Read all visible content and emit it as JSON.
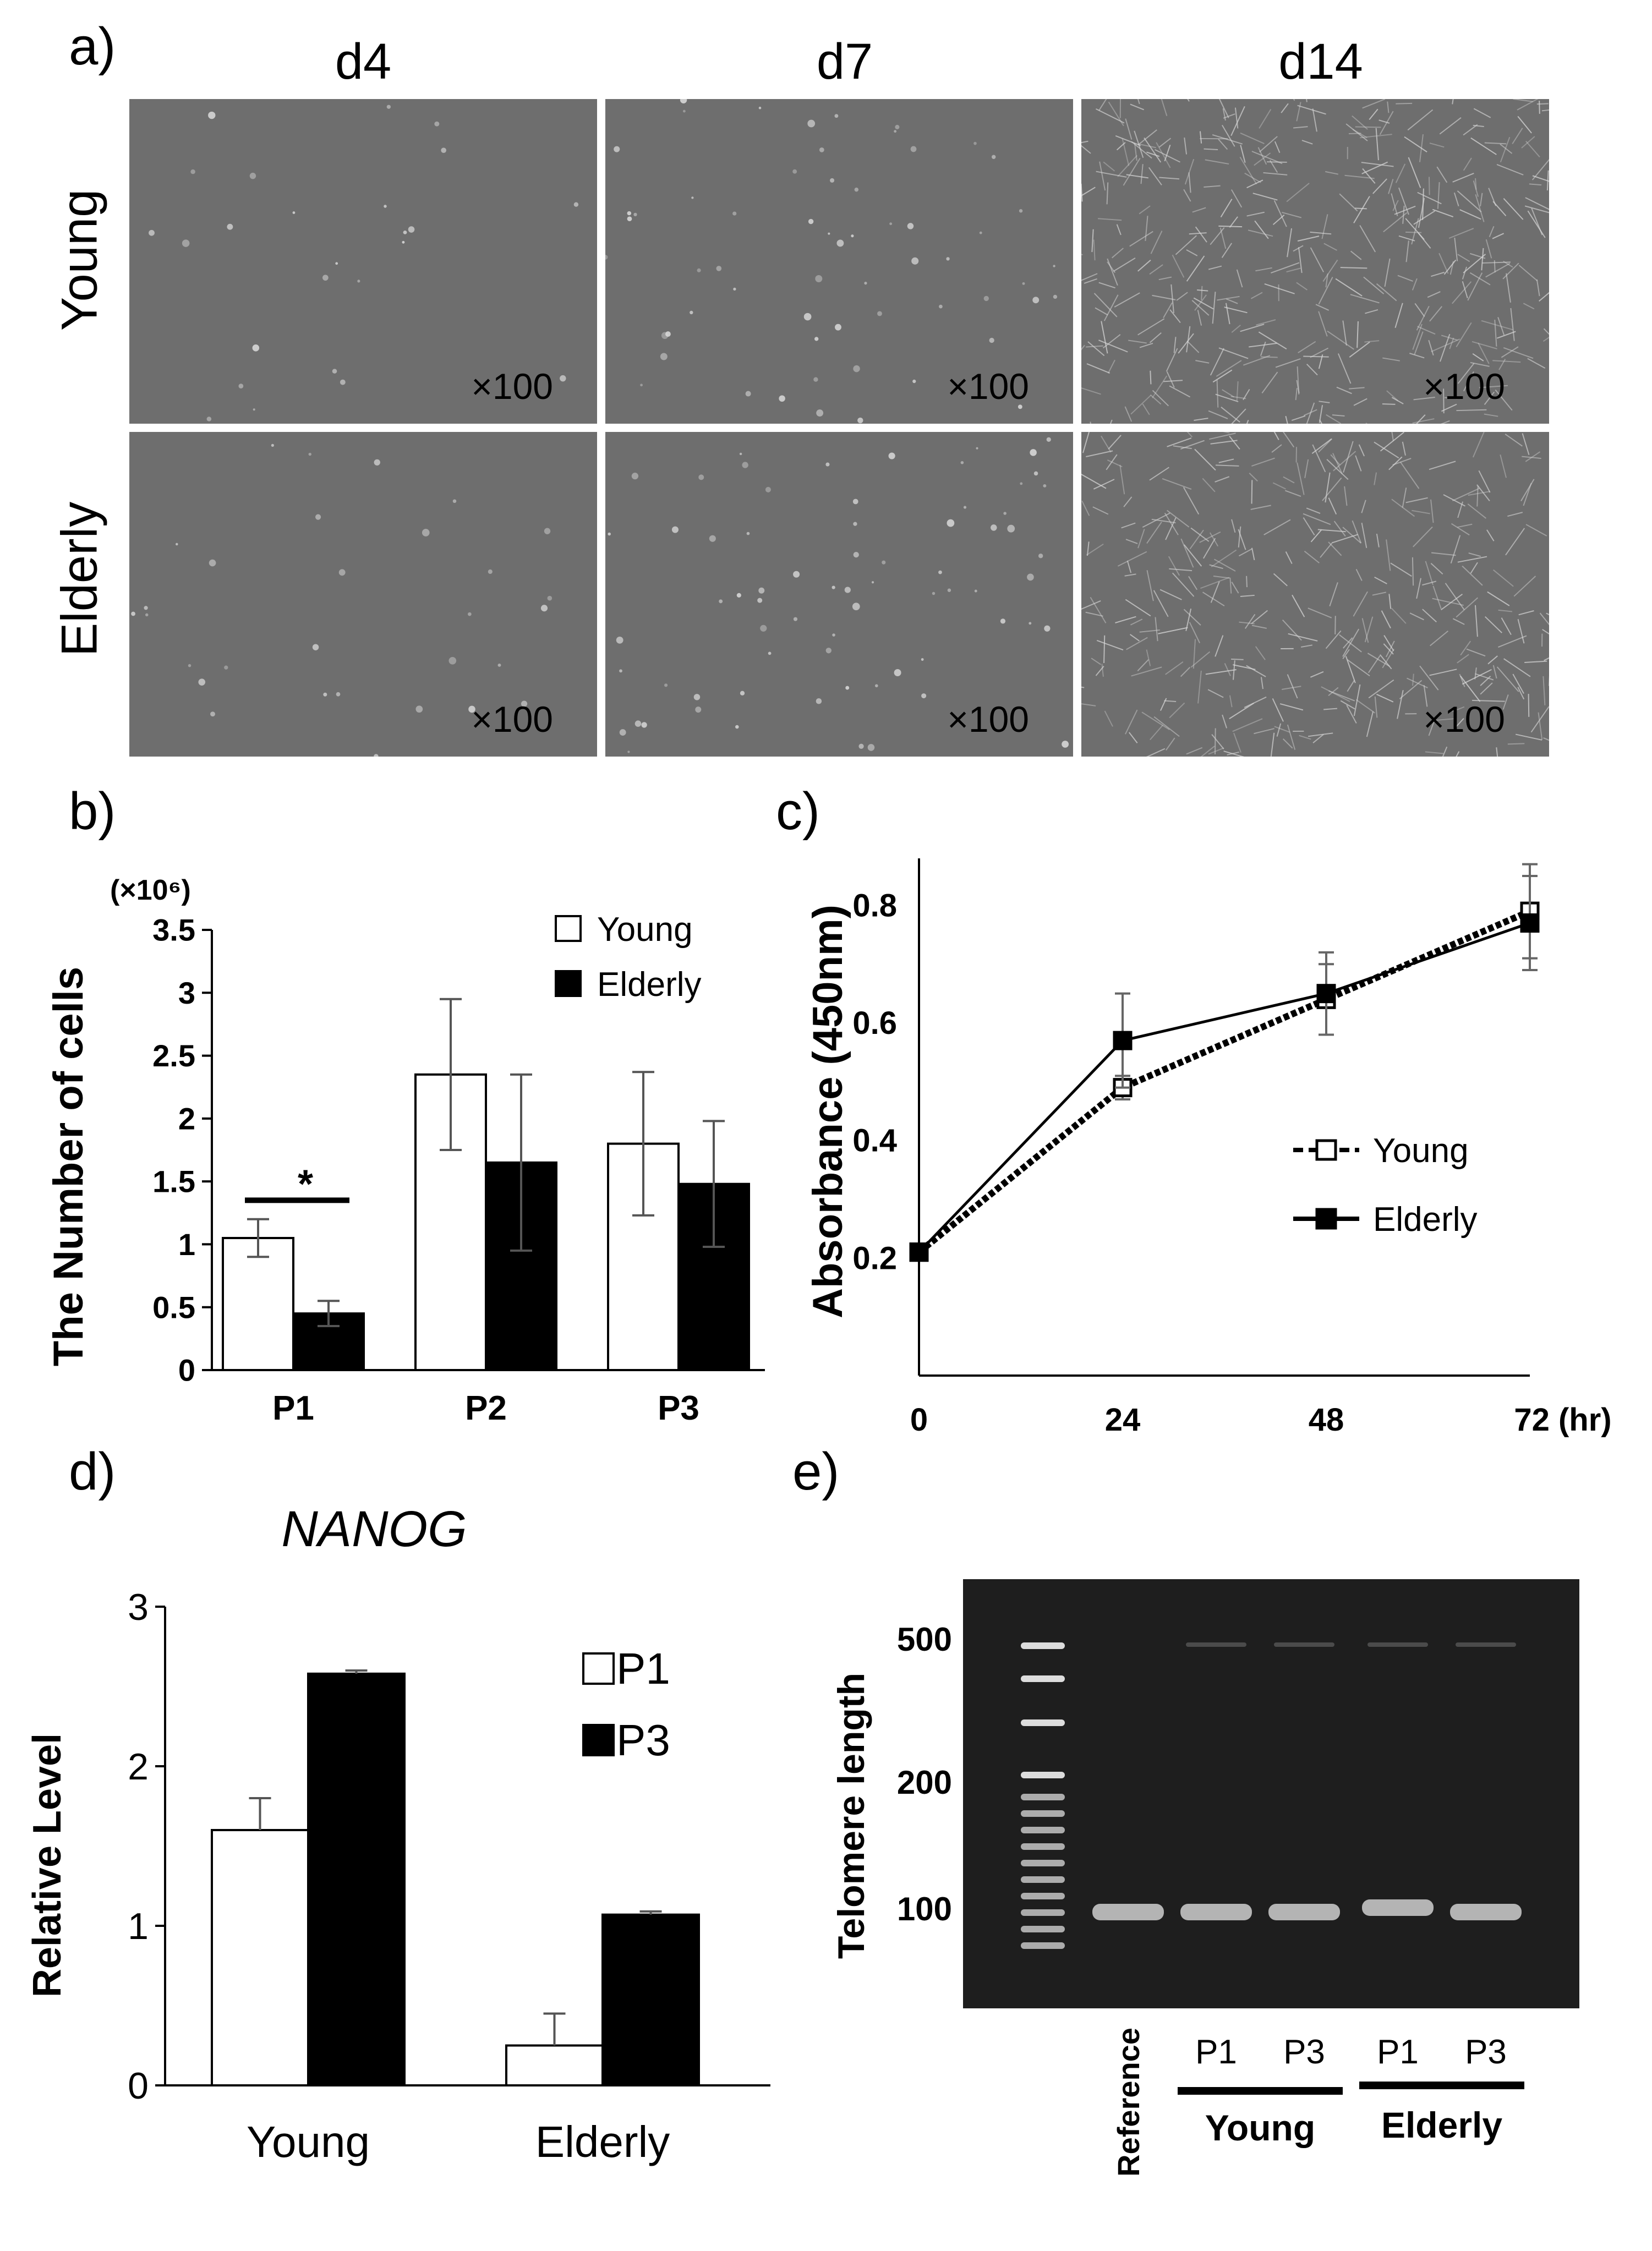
{
  "panels": {
    "a": "a)",
    "b": "b)",
    "c": "c)",
    "d": "d)",
    "e": "e)"
  },
  "micrographs": {
    "columns": [
      "d4",
      "d7",
      "d14"
    ],
    "rows": [
      "Young",
      "Elderly"
    ],
    "magnification": "×100",
    "colors": {
      "background": "#6e6e6e",
      "cells": "#d8d8d8"
    }
  },
  "chart_data": [
    {
      "panel": "b",
      "type": "bar",
      "ylabel": "The Number of cells",
      "yunit": "(×10⁶)",
      "categories": [
        "P1",
        "P2",
        "P3"
      ],
      "series": [
        {
          "name": "Young",
          "values": [
            1.05,
            2.35,
            1.8
          ],
          "errors": [
            0.15,
            0.6,
            0.57
          ],
          "color": "#ffffff"
        },
        {
          "name": "Elderly",
          "values": [
            0.45,
            1.65,
            1.48
          ],
          "errors": [
            0.1,
            0.7,
            0.5
          ],
          "color": "#000000"
        }
      ],
      "ylim": [
        0,
        3.5
      ],
      "yticks": [
        "0",
        "0.5",
        "1",
        "1.5",
        "2",
        "2.5",
        "3",
        "3.5"
      ],
      "annotation": "*",
      "legend": "top-right"
    },
    {
      "panel": "c",
      "type": "line",
      "ylabel": "Absorbance (450nm)",
      "x": [
        0,
        24,
        48,
        72
      ],
      "xticks": [
        "0",
        "24",
        "48",
        "72 (hr)"
      ],
      "yticks": [
        "0.2",
        "0.4",
        "0.6",
        "0.8"
      ],
      "ylim": [
        0.0,
        0.88
      ],
      "series": [
        {
          "name": "Young",
          "values": [
            0.21,
            0.49,
            0.64,
            0.79
          ],
          "errors": [
            0.0,
            0.02,
            0.06,
            0.08
          ],
          "marker": "open-square",
          "dashed": true
        },
        {
          "name": "Elderly",
          "values": [
            0.21,
            0.57,
            0.65,
            0.77
          ],
          "errors": [
            0.0,
            0.08,
            0.07,
            0.08
          ],
          "marker": "filled-square",
          "dashed": false
        }
      ],
      "legend": "right"
    },
    {
      "panel": "d",
      "type": "bar",
      "title": "NANOG",
      "ylabel": "Relative Level",
      "categories": [
        "Young",
        "Elderly"
      ],
      "series": [
        {
          "name": "P1",
          "values": [
            1.6,
            0.25
          ],
          "errors": [
            0.2,
            0.2
          ],
          "color": "#ffffff"
        },
        {
          "name": "P3",
          "values": [
            2.58,
            1.07
          ],
          "errors": [
            0.02,
            0.02
          ],
          "color": "#000000"
        }
      ],
      "ylim": [
        0,
        3
      ],
      "yticks": [
        "0",
        "1",
        "2",
        "3"
      ],
      "legend": "top-right"
    }
  ],
  "gel": {
    "ylabel": "Telomere length",
    "markers": [
      "500",
      "200",
      "100"
    ],
    "lanes": [
      "Reference",
      "P1",
      "P3",
      "P1",
      "P3"
    ],
    "groups": [
      "Young",
      "Elderly"
    ],
    "colors": {
      "background": "#1e1e1e",
      "band": "#cfcfcf"
    }
  }
}
